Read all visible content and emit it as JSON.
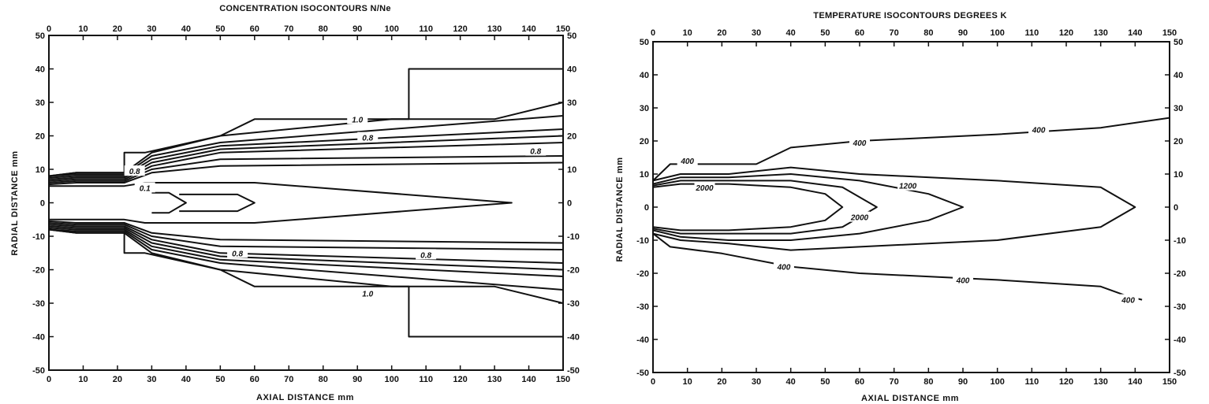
{
  "chart_data": [
    {
      "type": "line",
      "title": "CONCENTRATION ISOCONTOURS   N/Ne",
      "xlabel": "AXIAL DISTANCE    mm",
      "ylabel": "RADIAL DISTANCE    mm",
      "xlim": [
        0,
        150
      ],
      "ylim": [
        -50,
        50
      ],
      "xticks": [
        "0",
        "10",
        "20",
        "30",
        "40",
        "50",
        "60",
        "70",
        "80",
        "90",
        "100",
        "110",
        "120",
        "130",
        "140",
        "150"
      ],
      "yticks_left": [
        "50",
        "40",
        "30",
        "20",
        "10",
        "0",
        "-10",
        "-20",
        "-30",
        "-40",
        "-50"
      ],
      "yticks_right": [
        "50",
        "40",
        "30",
        "20",
        "10",
        "0",
        "-10",
        "-20",
        "-30",
        "-40",
        "-50"
      ],
      "grid": false,
      "series": [
        {
          "x": [
            0,
            8,
            22,
            22,
            28,
            50,
            60,
            105,
            105,
            110,
            150
          ],
          "y": [
            8,
            9,
            9,
            15,
            15,
            20,
            25,
            25,
            40,
            40,
            40
          ]
        },
        {
          "x": [
            0,
            8,
            22,
            30,
            50,
            100,
            130,
            150
          ],
          "y": [
            8,
            9,
            9,
            15,
            20,
            25,
            25,
            30
          ]
        },
        {
          "x": [
            0,
            8,
            22,
            30,
            50,
            150
          ],
          "y": [
            8,
            8.5,
            8.5,
            14,
            18,
            26
          ]
        },
        {
          "x": [
            0,
            8,
            22,
            30,
            50,
            150
          ],
          "y": [
            7.5,
            8,
            8,
            13,
            17,
            22
          ]
        },
        {
          "x": [
            0,
            8,
            22,
            30,
            50,
            150
          ],
          "y": [
            7,
            7.5,
            7.5,
            12,
            16,
            20
          ]
        },
        {
          "x": [
            0,
            8,
            22,
            30,
            50,
            150
          ],
          "y": [
            6.5,
            7,
            7,
            11,
            15,
            18
          ]
        },
        {
          "x": [
            0,
            8,
            22,
            30,
            50,
            150
          ],
          "y": [
            6,
            6.5,
            6.5,
            10,
            13,
            14
          ]
        },
        {
          "x": [
            0,
            8,
            22,
            30,
            50,
            150
          ],
          "y": [
            5.5,
            6,
            6,
            9,
            11,
            12
          ]
        },
        {
          "x": [
            0,
            22,
            28,
            60,
            135,
            60,
            28,
            22,
            0
          ],
          "y": [
            5,
            5,
            6,
            6,
            0,
            -6,
            -6,
            -5,
            -5
          ]
        },
        {
          "x": [
            30,
            35,
            40,
            35,
            30
          ],
          "y": [
            3,
            3,
            0,
            -3,
            -3
          ]
        },
        {
          "x": [
            38,
            55,
            60,
            55,
            38
          ],
          "y": [
            2.5,
            2.5,
            0,
            -2.5,
            -2.5
          ]
        },
        {
          "x": [
            0,
            8,
            22,
            30,
            50,
            150
          ],
          "y": [
            -5.5,
            -6,
            -6,
            -9,
            -11,
            -12
          ]
        },
        {
          "x": [
            0,
            8,
            22,
            30,
            50,
            150
          ],
          "y": [
            -6,
            -6.5,
            -6.5,
            -10,
            -13,
            -14
          ]
        },
        {
          "x": [
            0,
            8,
            22,
            30,
            50,
            150
          ],
          "y": [
            -6.5,
            -7,
            -7,
            -11,
            -15,
            -18
          ]
        },
        {
          "x": [
            0,
            8,
            22,
            30,
            50,
            150
          ],
          "y": [
            -7,
            -7.5,
            -7.5,
            -12,
            -16,
            -20
          ]
        },
        {
          "x": [
            0,
            8,
            22,
            30,
            50,
            150
          ],
          "y": [
            -7.5,
            -8,
            -8,
            -13,
            -17,
            -22
          ]
        },
        {
          "x": [
            0,
            8,
            22,
            30,
            50,
            150
          ],
          "y": [
            -8,
            -8.5,
            -8.5,
            -14,
            -18,
            -26
          ]
        },
        {
          "x": [
            0,
            8,
            22,
            30,
            50,
            100,
            130,
            150
          ],
          "y": [
            -8,
            -9,
            -9,
            -15,
            -20,
            -25,
            -25,
            -30
          ]
        },
        {
          "x": [
            0,
            8,
            22,
            22,
            28,
            50,
            60,
            105,
            105,
            110,
            150
          ],
          "y": [
            -8,
            -9,
            -9,
            -15,
            -15,
            -20,
            -25,
            -25,
            -40,
            -40,
            -40
          ]
        }
      ],
      "annotations": [
        {
          "text": "1.0",
          "x": 90,
          "y": 25
        },
        {
          "text": "0.8",
          "x": 93,
          "y": 19.5
        },
        {
          "text": "0.8",
          "x": 142,
          "y": 15.5
        },
        {
          "text": "0.8",
          "x": 25,
          "y": 9.5
        },
        {
          "text": "0.1",
          "x": 28,
          "y": 4.5
        },
        {
          "text": "0.8",
          "x": 55,
          "y": -15
        },
        {
          "text": "0.8",
          "x": 110,
          "y": -15.5
        },
        {
          "text": "1.0",
          "x": 93,
          "y": -27
        }
      ]
    },
    {
      "type": "line",
      "title": "TEMPERATURE ISOCONTOURS    DEGREES  K",
      "xlabel": "AXIAL DISTANCE    mm",
      "ylabel": "RADIAL DISTANCE    mm",
      "xlim": [
        0,
        150
      ],
      "ylim": [
        -50,
        50
      ],
      "xticks": [
        "0",
        "10",
        "20",
        "30",
        "40",
        "50",
        "60",
        "70",
        "80",
        "90",
        "100",
        "110",
        "120",
        "130",
        "140",
        "150"
      ],
      "yticks_left": [
        "50",
        "40",
        "30",
        "20",
        "10",
        "0",
        "-10",
        "-20",
        "-30",
        "-40",
        "-50"
      ],
      "yticks_right": [
        "50",
        "40",
        "30",
        "20",
        "10",
        "0",
        "-10",
        "-20",
        "-30",
        "-40",
        "-50"
      ],
      "grid": false,
      "series": [
        {
          "x": [
            0,
            5,
            30,
            40,
            60,
            100,
            130,
            150
          ],
          "y": [
            8,
            13,
            13,
            18,
            20,
            22,
            24,
            27
          ]
        },
        {
          "x": [
            0,
            8,
            22,
            40,
            60,
            100,
            130,
            140,
            130,
            100,
            60,
            40,
            22,
            8,
            0
          ],
          "y": [
            8,
            10,
            10,
            12,
            10,
            8,
            6,
            0,
            -6,
            -10,
            -12,
            -13,
            -11,
            -10,
            -8
          ]
        },
        {
          "x": [
            0,
            8,
            22,
            40,
            60,
            80,
            90,
            80,
            60,
            40,
            22,
            8,
            0
          ],
          "y": [
            7,
            9,
            9,
            10,
            8,
            4,
            0,
            -4,
            -8,
            -10,
            -10,
            -9,
            -7
          ]
        },
        {
          "x": [
            0,
            8,
            22,
            40,
            55,
            65,
            55,
            40,
            22,
            8,
            0
          ],
          "y": [
            6.5,
            8,
            8,
            8,
            6,
            0,
            -6,
            -8,
            -8,
            -8,
            -6.5
          ]
        },
        {
          "x": [
            0,
            8,
            22,
            40,
            50,
            55,
            50,
            40,
            22,
            8,
            0
          ],
          "y": [
            6,
            7,
            7,
            6,
            4,
            0,
            -4,
            -6,
            -7,
            -7,
            -6
          ]
        },
        {
          "x": [
            0,
            5,
            20,
            40,
            60,
            100,
            130,
            138,
            142
          ],
          "y": [
            -8,
            -12,
            -14,
            -18,
            -20,
            -22,
            -24,
            -27,
            -28
          ]
        }
      ],
      "annotations": [
        {
          "text": "400",
          "x": 10,
          "y": 14
        },
        {
          "text": "400",
          "x": 60,
          "y": 19.5
        },
        {
          "text": "400",
          "x": 112,
          "y": 23.5
        },
        {
          "text": "1200",
          "x": 74,
          "y": 6.5
        },
        {
          "text": "2000",
          "x": 15,
          "y": 6
        },
        {
          "text": "2000",
          "x": 60,
          "y": -3
        },
        {
          "text": "400",
          "x": 38,
          "y": -18
        },
        {
          "text": "400",
          "x": 90,
          "y": -22
        },
        {
          "text": "400",
          "x": 138,
          "y": -28
        }
      ]
    }
  ]
}
